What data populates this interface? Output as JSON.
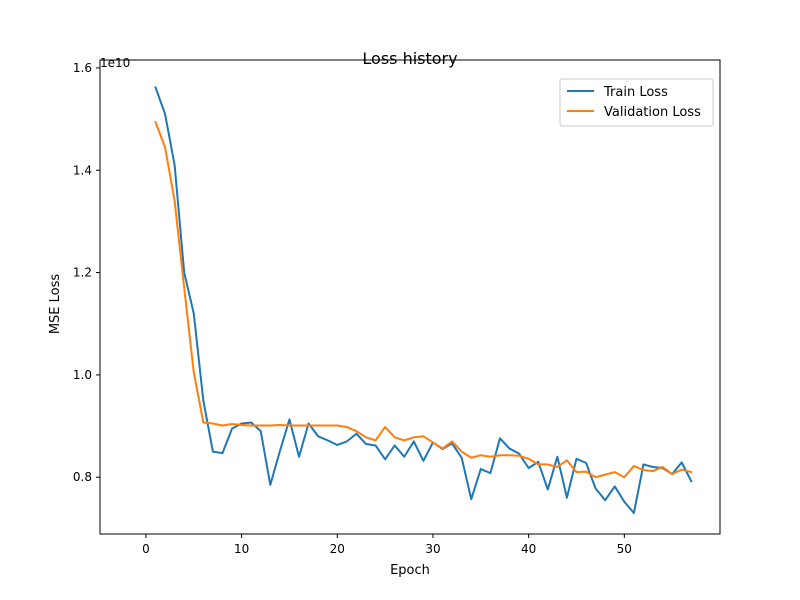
{
  "chart_data": {
    "type": "line",
    "title": "Loss history",
    "xlabel": "Epoch",
    "ylabel": "MSE Loss",
    "y_offset_label": "1e10",
    "xlim": [
      -4.8,
      60
    ],
    "ylim": [
      0.689,
      1.6155
    ],
    "xticks": [
      0,
      10,
      20,
      30,
      40,
      50
    ],
    "yticks": [
      0.8,
      1.0,
      1.2,
      1.4,
      1.6
    ],
    "ytick_labels": [
      "0.8",
      "1.0",
      "1.2",
      "1.4",
      "1.6"
    ],
    "grid": false,
    "legend_position": "top-right",
    "x": [
      1,
      2,
      3,
      4,
      5,
      6,
      7,
      8,
      9,
      10,
      11,
      12,
      13,
      14,
      15,
      16,
      17,
      18,
      19,
      20,
      21,
      22,
      23,
      24,
      25,
      26,
      27,
      28,
      29,
      30,
      31,
      32,
      33,
      34,
      35,
      36,
      37,
      38,
      39,
      40,
      41,
      42,
      43,
      44,
      45,
      46,
      47,
      48,
      49,
      50,
      51,
      52,
      53,
      54,
      55,
      56,
      57
    ],
    "series": [
      {
        "name": "Train Loss",
        "color": "#1f77b4",
        "values": [
          1.562,
          1.51,
          1.41,
          1.2,
          1.12,
          0.95,
          0.85,
          0.847,
          0.895,
          0.905,
          0.907,
          0.89,
          0.785,
          0.851,
          0.913,
          0.84,
          0.905,
          0.88,
          0.872,
          0.863,
          0.87,
          0.885,
          0.865,
          0.862,
          0.835,
          0.862,
          0.84,
          0.87,
          0.832,
          0.868,
          0.855,
          0.866,
          0.838,
          0.757,
          0.816,
          0.808,
          0.876,
          0.856,
          0.846,
          0.818,
          0.83,
          0.776,
          0.84,
          0.76,
          0.836,
          0.828,
          0.778,
          0.755,
          0.782,
          0.752,
          0.73,
          0.825,
          0.82,
          0.818,
          0.806,
          0.829,
          0.792
        ]
      },
      {
        "name": "Validation Loss",
        "color": "#ff7f0e",
        "values": [
          1.494,
          1.445,
          1.34,
          1.17,
          1.005,
          0.907,
          0.905,
          0.901,
          0.904,
          0.902,
          0.901,
          0.901,
          0.901,
          0.902,
          0.901,
          0.901,
          0.901,
          0.901,
          0.901,
          0.901,
          0.898,
          0.89,
          0.878,
          0.872,
          0.898,
          0.878,
          0.872,
          0.878,
          0.88,
          0.868,
          0.856,
          0.87,
          0.85,
          0.838,
          0.843,
          0.84,
          0.843,
          0.843,
          0.842,
          0.836,
          0.825,
          0.825,
          0.82,
          0.833,
          0.81,
          0.811,
          0.8,
          0.805,
          0.81,
          0.8,
          0.822,
          0.814,
          0.812,
          0.82,
          0.806,
          0.815,
          0.81
        ]
      }
    ]
  }
}
